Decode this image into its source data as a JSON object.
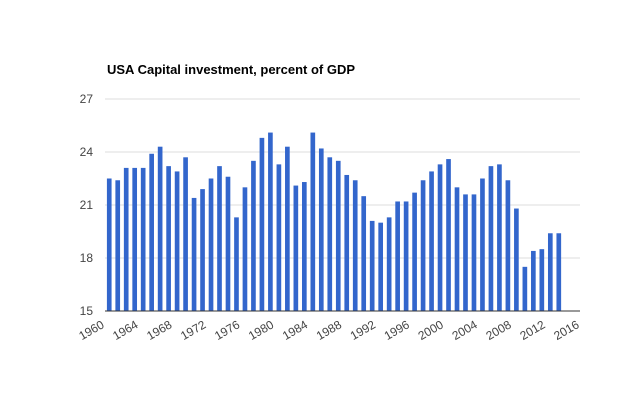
{
  "chart_data": {
    "type": "bar",
    "title": "USA Capital investment, percent of GDP",
    "xlabel": "",
    "ylabel": "",
    "x": [
      1960,
      1961,
      1962,
      1963,
      1964,
      1965,
      1966,
      1967,
      1968,
      1969,
      1970,
      1971,
      1972,
      1973,
      1974,
      1975,
      1976,
      1977,
      1978,
      1979,
      1980,
      1981,
      1982,
      1983,
      1984,
      1985,
      1986,
      1987,
      1988,
      1989,
      1990,
      1991,
      1992,
      1993,
      1994,
      1995,
      1996,
      1997,
      1998,
      1999,
      2000,
      2001,
      2002,
      2003,
      2004,
      2005,
      2006,
      2007,
      2008,
      2009,
      2010,
      2011,
      2012,
      2013
    ],
    "values": [
      22.5,
      22.4,
      23.1,
      23.1,
      23.1,
      23.9,
      24.3,
      23.2,
      22.9,
      23.7,
      21.4,
      21.9,
      22.5,
      23.2,
      22.6,
      20.3,
      22.0,
      23.5,
      24.8,
      25.1,
      23.3,
      24.3,
      22.1,
      22.3,
      25.1,
      24.2,
      23.7,
      23.5,
      22.7,
      22.4,
      21.5,
      20.1,
      20.0,
      20.3,
      21.2,
      21.2,
      21.7,
      22.4,
      22.9,
      23.3,
      23.6,
      22.0,
      21.6,
      21.6,
      22.5,
      23.2,
      23.3,
      22.4,
      20.8,
      17.5,
      18.4,
      18.5,
      19.4,
      19.4
    ],
    "xlim": [
      1960,
      2016
    ],
    "ylim": [
      15,
      27
    ],
    "xticks": [
      "1960",
      "1964",
      "1968",
      "1972",
      "1976",
      "1980",
      "1984",
      "1988",
      "1992",
      "1996",
      "2000",
      "2004",
      "2008",
      "2012",
      "2016"
    ],
    "yticks": [
      "15",
      "18",
      "21",
      "24",
      "27"
    ],
    "bar_color": "#3366cc",
    "grid": true,
    "legend": "none"
  }
}
